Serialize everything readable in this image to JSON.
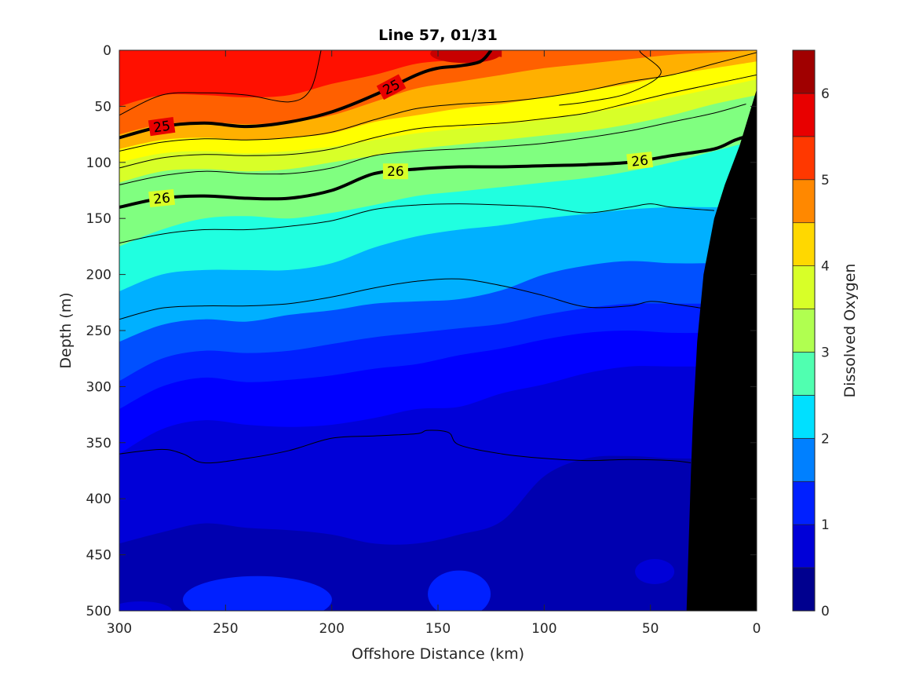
{
  "chart_data": {
    "type": "contour",
    "title": "Line 57, 01/31",
    "xlabel": "Offshore Distance (km)",
    "ylabel": "Depth (m)",
    "xlim": [
      300,
      0
    ],
    "ylim": [
      500,
      0
    ],
    "x_reversed": true,
    "y_reversed": true,
    "xticks": [
      "300",
      "250",
      "200",
      "150",
      "100",
      "50",
      "0"
    ],
    "xtick_values": [
      300,
      250,
      200,
      150,
      100,
      50,
      0
    ],
    "yticks": [
      "0",
      "50",
      "100",
      "150",
      "200",
      "250",
      "300",
      "350",
      "400",
      "450",
      "500"
    ],
    "ytick_values": [
      0,
      50,
      100,
      150,
      200,
      250,
      300,
      350,
      400,
      450,
      500
    ],
    "colorbar": {
      "label": "Dissolved Oxygen",
      "range": [
        0,
        6.5
      ],
      "step": 0.5,
      "ticks": [
        "0",
        "1",
        "2",
        "3",
        "4",
        "5",
        "6"
      ],
      "tick_values": [
        0,
        1,
        2,
        3,
        4,
        5,
        6
      ],
      "colors": [
        "#00008f",
        "#0000b0",
        "#0000d8",
        "#0000ff",
        "#0020ff",
        "#0050ff",
        "#0080ff",
        "#00b0ff",
        "#00e0ff",
        "#20ffe0",
        "#50ffb0",
        "#80ff80",
        "#b0ff50",
        "#d8ff28",
        "#ffff00",
        "#ffd800",
        "#ffb000",
        "#ff8800",
        "#ff6000",
        "#ff3800",
        "#ff1000",
        "#e80000",
        "#c80000",
        "#a00000"
      ]
    },
    "oxygen_boundaries": {
      "x": [
        300,
        280,
        260,
        240,
        220,
        200,
        180,
        160,
        140,
        120,
        100,
        80,
        60,
        40,
        20,
        0
      ],
      "levels": [
        {
          "level": 6.0,
          "depth": [
            null,
            null,
            null,
            null,
            null,
            null,
            null,
            null,
            2,
            6,
            null,
            null,
            null,
            null,
            null,
            null
          ]
        },
        {
          "level": 5.5,
          "depth": [
            50,
            40,
            40,
            42,
            40,
            30,
            22,
            12,
            8,
            0,
            0,
            0,
            0,
            0,
            0,
            0
          ]
        },
        {
          "level": 5.0,
          "depth": [
            75,
            66,
            64,
            66,
            64,
            58,
            46,
            34,
            28,
            22,
            16,
            12,
            8,
            4,
            2,
            0
          ]
        },
        {
          "level": 4.5,
          "depth": [
            88,
            80,
            78,
            80,
            78,
            74,
            64,
            58,
            52,
            48,
            42,
            36,
            30,
            22,
            16,
            10
          ]
        },
        {
          "level": 4.0,
          "depth": [
            100,
            92,
            90,
            92,
            90,
            86,
            80,
            74,
            70,
            66,
            62,
            56,
            50,
            42,
            34,
            26
          ]
        },
        {
          "level": 3.5,
          "depth": [
            118,
            108,
            106,
            108,
            106,
            100,
            94,
            88,
            84,
            80,
            76,
            72,
            66,
            58,
            48,
            40
          ]
        },
        {
          "level": 3.0,
          "depth": [
            175,
            160,
            150,
            148,
            150,
            145,
            138,
            130,
            126,
            122,
            118,
            114,
            108,
            100,
            90,
            80
          ]
        },
        {
          "level": 2.5,
          "depth": [
            215,
            200,
            196,
            196,
            196,
            190,
            176,
            166,
            160,
            156,
            150,
            146,
            142,
            140,
            140,
            140
          ]
        },
        {
          "level": 2.0,
          "depth": [
            260,
            245,
            240,
            242,
            236,
            232,
            226,
            224,
            222,
            214,
            200,
            192,
            188,
            190,
            190,
            190
          ]
        },
        {
          "level": 1.5,
          "depth": [
            295,
            275,
            268,
            270,
            268,
            262,
            256,
            252,
            248,
            244,
            236,
            230,
            226,
            226,
            226,
            226
          ]
        },
        {
          "level": 1.25,
          "depth": [
            320,
            300,
            292,
            296,
            294,
            290,
            284,
            280,
            272,
            266,
            258,
            252,
            250,
            252,
            252,
            252
          ]
        },
        {
          "level": 1.0,
          "depth": [
            360,
            338,
            330,
            334,
            336,
            334,
            328,
            320,
            318,
            306,
            298,
            288,
            282,
            282,
            282,
            282
          ]
        },
        {
          "level": 0.75,
          "depth": [
            400,
            380,
            376,
            376,
            372,
            370,
            362,
            358,
            360,
            352,
            340,
            336,
            332,
            330,
            330,
            330
          ]
        },
        {
          "level": 0.5,
          "depth": [
            440,
            430,
            422,
            426,
            428,
            432,
            440,
            440,
            432,
            420,
            380,
            364,
            362,
            364,
            364,
            364
          ]
        }
      ]
    },
    "density_contours": [
      {
        "label": "25",
        "bold": true,
        "x": [
          300,
          280,
          260,
          240,
          220,
          200,
          180,
          160,
          150,
          140,
          130,
          125
        ],
        "depth": [
          78,
          68,
          65,
          68,
          64,
          55,
          40,
          22,
          16,
          14,
          10,
          0
        ]
      },
      {
        "label": "26",
        "bold": true,
        "x": [
          300,
          280,
          260,
          240,
          220,
          200,
          180,
          160,
          140,
          120,
          100,
          80,
          60,
          40,
          20,
          10,
          0
        ],
        "depth": [
          140,
          132,
          130,
          132,
          132,
          125,
          110,
          106,
          104,
          104,
          103,
          102,
          100,
          94,
          88,
          80,
          74
        ]
      },
      {
        "label": "",
        "bold": false,
        "x": [
          300,
          280,
          260,
          240,
          220,
          210,
          205
        ],
        "depth": [
          58,
          40,
          38,
          40,
          46,
          35,
          0
        ]
      },
      {
        "label": "",
        "bold": false,
        "x": [
          93,
          80,
          60,
          45,
          55,
          40,
          20,
          0
        ],
        "depth": [
          49,
          46,
          38,
          20,
          0,
          0,
          0,
          0
        ]
      },
      {
        "label": "",
        "bold": false,
        "x": [
          300,
          280,
          260,
          240,
          220,
          200,
          180,
          160,
          140,
          120,
          100,
          80,
          60,
          40,
          20,
          0
        ],
        "depth": [
          90,
          82,
          79,
          80,
          78,
          73,
          62,
          52,
          48,
          46,
          42,
          36,
          28,
          22,
          12,
          2
        ]
      },
      {
        "label": "",
        "bold": false,
        "x": [
          300,
          280,
          260,
          240,
          220,
          200,
          180,
          160,
          140,
          120,
          100,
          80,
          60,
          40,
          20,
          0
        ],
        "depth": [
          105,
          96,
          93,
          94,
          93,
          88,
          78,
          70,
          67,
          65,
          61,
          56,
          47,
          38,
          30,
          22
        ]
      },
      {
        "label": "",
        "bold": false,
        "x": [
          300,
          280,
          260,
          240,
          220,
          200,
          180,
          160,
          140,
          120,
          100,
          80,
          60,
          40,
          20,
          5
        ],
        "depth": [
          120,
          112,
          108,
          110,
          110,
          105,
          94,
          90,
          88,
          86,
          83,
          78,
          72,
          64,
          56,
          48
        ]
      },
      {
        "label": "",
        "bold": false,
        "x": [
          300,
          280,
          260,
          240,
          220,
          200,
          180,
          160,
          140,
          120,
          100,
          80,
          60,
          50,
          40,
          20
        ],
        "depth": [
          172,
          164,
          160,
          160,
          157,
          152,
          142,
          138,
          137,
          138,
          140,
          145,
          140,
          137,
          140,
          143
        ]
      },
      {
        "label": "",
        "bold": false,
        "x": [
          300,
          280,
          260,
          240,
          220,
          200,
          180,
          160,
          140,
          120,
          100,
          80,
          60,
          50,
          40,
          26
        ],
        "depth": [
          240,
          230,
          228,
          228,
          226,
          220,
          212,
          206,
          204,
          210,
          219,
          229,
          228,
          224,
          226,
          230
        ]
      },
      {
        "label": "",
        "bold": false,
        "x": [
          300,
          280,
          270,
          260,
          240,
          220,
          200,
          180,
          160,
          155,
          145,
          140,
          120,
          100,
          80,
          60,
          40,
          31
        ],
        "depth": [
          360,
          356,
          360,
          368,
          364,
          357,
          346,
          344,
          342,
          339,
          341,
          352,
          360,
          364,
          366,
          365,
          366,
          368
        ]
      }
    ],
    "bathymetry": {
      "x": [
        0,
        0,
        8,
        15,
        20,
        25,
        28,
        30,
        31,
        33,
        33
      ],
      "depth": [
        500,
        35,
        85,
        120,
        150,
        200,
        260,
        330,
        380,
        500,
        500
      ]
    }
  }
}
